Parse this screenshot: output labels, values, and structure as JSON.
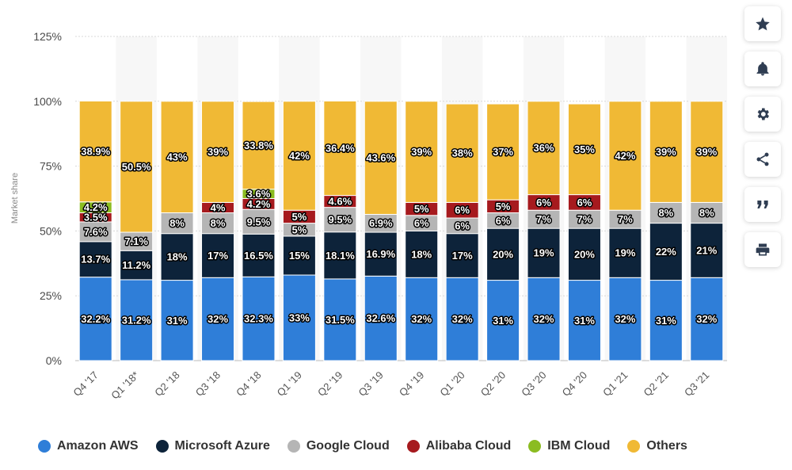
{
  "chart_data": {
    "type": "bar",
    "stacked": true,
    "title": "",
    "xlabel": "",
    "ylabel": "Market share",
    "ylim": [
      0,
      125
    ],
    "yticks": [
      "0%",
      "25%",
      "50%",
      "75%",
      "100%",
      "125%"
    ],
    "categories": [
      "Q4 '17",
      "Q1 '18*",
      "Q2 '18",
      "Q3 '18",
      "Q4 '18",
      "Q1 '19",
      "Q2 '19",
      "Q3 '19",
      "Q4 '19",
      "Q1 '20",
      "Q2 '20",
      "Q3 '20",
      "Q4 '20",
      "Q1 '21",
      "Q2 '21",
      "Q3 '21"
    ],
    "series": [
      {
        "name": "Amazon AWS",
        "color": "#2f7ed8",
        "values": [
          32.2,
          31.2,
          31,
          32,
          32.3,
          33,
          31.5,
          32.6,
          32,
          32,
          31,
          32,
          31,
          32,
          31,
          32
        ],
        "labels": [
          "32.2%",
          "31.2%",
          "31%",
          "32%",
          "32.3%",
          "33%",
          "31.5%",
          "32.6%",
          "32%",
          "32%",
          "31%",
          "32%",
          "31%",
          "32%",
          "31%",
          "32%"
        ]
      },
      {
        "name": "Microsoft Azure",
        "color": "#0d233a",
        "values": [
          13.7,
          11.2,
          18,
          17,
          16.5,
          15,
          18.1,
          16.9,
          18,
          17,
          20,
          19,
          20,
          19,
          22,
          21
        ],
        "labels": [
          "13.7%",
          "11.2%",
          "18%",
          "17%",
          "16.5%",
          "15%",
          "18.1%",
          "16.9%",
          "18%",
          "17%",
          "20%",
          "19%",
          "20%",
          "19%",
          "22%",
          "21%"
        ]
      },
      {
        "name": "Google Cloud",
        "color": "#b5b5b5",
        "values": [
          7.6,
          7.1,
          8,
          8,
          9.5,
          5,
          9.5,
          6.9,
          6,
          6,
          6,
          7,
          7,
          7,
          8,
          8
        ],
        "labels": [
          "7.6%",
          "7.1%",
          "8%",
          "8%",
          "9.5%",
          "5%",
          "9.5%",
          "6.9%",
          "6%",
          "6%",
          "6%",
          "7%",
          "7%",
          "7%",
          "8%",
          "8%"
        ]
      },
      {
        "name": "Alibaba Cloud",
        "color": "#a61a1e",
        "values": [
          3.5,
          0,
          0,
          4,
          4.2,
          5,
          4.6,
          0,
          5,
          6,
          5,
          6,
          6,
          0,
          0,
          0
        ],
        "labels": [
          "3.5%",
          "",
          "",
          "4%",
          "4.2%",
          "5%",
          "4.6%",
          "",
          "5%",
          "6%",
          "5%",
          "6%",
          "6%",
          "",
          "",
          ""
        ]
      },
      {
        "name": "IBM Cloud",
        "color": "#8bbc21",
        "values": [
          4.2,
          0,
          0,
          0,
          3.6,
          0,
          0,
          0,
          0,
          0,
          0,
          0,
          0,
          0,
          0,
          0
        ],
        "labels": [
          "4.2%",
          "",
          "",
          "",
          "3.6%",
          "",
          "",
          "",
          "",
          "",
          "",
          "",
          "",
          "",
          "",
          ""
        ]
      },
      {
        "name": "Others",
        "color": "#f0b935",
        "values": [
          38.9,
          50.5,
          43,
          39,
          33.8,
          42,
          36.4,
          43.6,
          39,
          38,
          37,
          36,
          35,
          42,
          39,
          39
        ],
        "labels": [
          "38.9%",
          "50.5%",
          "43%",
          "39%",
          "33.8%",
          "42%",
          "36.4%",
          "43.6%",
          "39%",
          "38%",
          "37%",
          "36%",
          "35%",
          "42%",
          "39%",
          "39%"
        ]
      }
    ],
    "grid": true,
    "legend_position": "bottom-left"
  },
  "toolbar": {
    "icons": [
      "star-icon",
      "bell-icon",
      "gear-icon",
      "share-icon",
      "quote-icon",
      "print-icon"
    ]
  }
}
